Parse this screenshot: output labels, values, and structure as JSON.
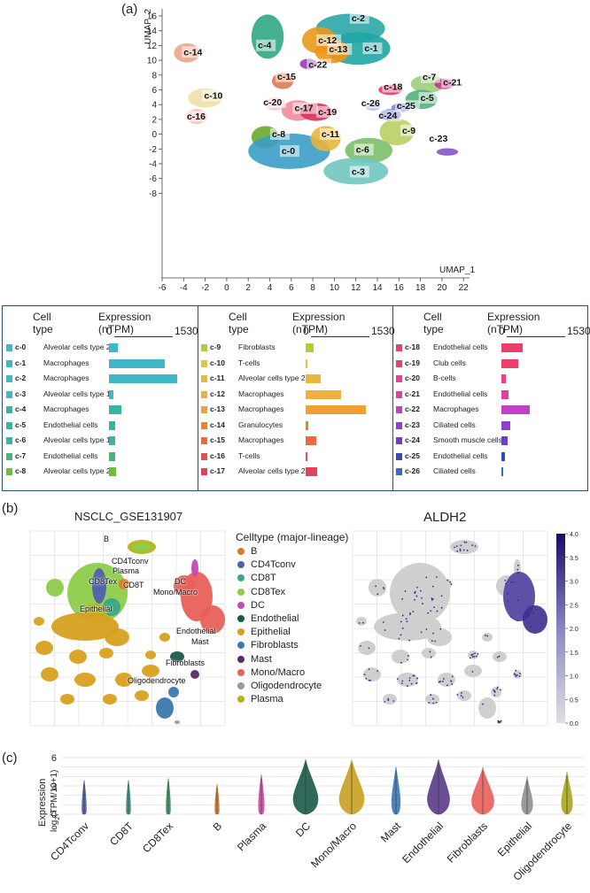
{
  "panels": {
    "a": "(a)",
    "b": "(b)",
    "c": "(c)"
  },
  "umap": {
    "ylabel": "UMAP_2",
    "xlabel": "UMAP_1",
    "xticks": [
      "-6",
      "-4",
      "-2",
      "0",
      "2",
      "4",
      "6",
      "8",
      "10",
      "12",
      "14",
      "16",
      "18",
      "20",
      "22"
    ],
    "yticks": [
      "16",
      "14",
      "12",
      "10",
      "8",
      "6",
      "4",
      "2",
      "0",
      "-2",
      "-4",
      "-6",
      "-8"
    ],
    "clusters": [
      {
        "id": "c-0",
        "color": "#3a9ec6"
      },
      {
        "id": "c-1",
        "color": "#1fa5a5"
      },
      {
        "id": "c-2",
        "color": "#2aa6a6"
      },
      {
        "id": "c-3",
        "color": "#6fc7c0"
      },
      {
        "id": "c-4",
        "color": "#2fa884"
      },
      {
        "id": "c-5",
        "color": "#52b37a"
      },
      {
        "id": "c-6",
        "color": "#7cbf6a"
      },
      {
        "id": "c-7",
        "color": "#9ccd7e"
      },
      {
        "id": "c-8",
        "color": "#6aa82c"
      },
      {
        "id": "c-9",
        "color": "#b9cf64"
      },
      {
        "id": "c-10",
        "color": "#efe0a8"
      },
      {
        "id": "c-11",
        "color": "#e9b53c"
      },
      {
        "id": "c-12",
        "color": "#e99a1c"
      },
      {
        "id": "c-13",
        "color": "#f09418"
      },
      {
        "id": "c-14",
        "color": "#eaa58a"
      },
      {
        "id": "c-15",
        "color": "#e07a54"
      },
      {
        "id": "c-16",
        "color": "#f2b7b0"
      },
      {
        "id": "c-17",
        "color": "#f08b9a"
      },
      {
        "id": "c-18",
        "color": "#e33a6b"
      },
      {
        "id": "c-19",
        "color": "#d8305a"
      },
      {
        "id": "c-20",
        "color": "#f4c8d6"
      },
      {
        "id": "c-21",
        "color": "#d2308a"
      },
      {
        "id": "c-22",
        "color": "#9a3ab0"
      },
      {
        "id": "c-23",
        "color": "#8a52c8"
      },
      {
        "id": "c-24",
        "color": "#6a72c8"
      },
      {
        "id": "c-25",
        "color": "#7a8ad0"
      },
      {
        "id": "c-26",
        "color": "#a6b8e2"
      }
    ]
  },
  "expression_table": {
    "col_header_type": "Cell type",
    "col_header_expr": "Expression (nTPM)",
    "axis_min": "0",
    "axis_max": "1530",
    "rows": [
      {
        "id": "c-0",
        "cell": "Alveolar cells type 2",
        "value": 170,
        "color": "#3fb8c8"
      },
      {
        "id": "c-1",
        "cell": "Macrophages",
        "value": 1100,
        "color": "#3fb8c8"
      },
      {
        "id": "c-2",
        "cell": "Macrophages",
        "value": 1340,
        "color": "#3fb8c8"
      },
      {
        "id": "c-3",
        "cell": "Alveolar cells type 1",
        "value": 80,
        "color": "#3fb8c8"
      },
      {
        "id": "c-4",
        "cell": "Macrophages",
        "value": 250,
        "color": "#36b5a0"
      },
      {
        "id": "c-5",
        "cell": "Endothelial cells",
        "value": 130,
        "color": "#36b5a0"
      },
      {
        "id": "c-6",
        "cell": "Alveolar cells type 1",
        "value": 120,
        "color": "#36b5a0"
      },
      {
        "id": "c-7",
        "cell": "Endothelial cells",
        "value": 115,
        "color": "#3fb878"
      },
      {
        "id": "c-8",
        "cell": "Alveolar cells type 2",
        "value": 140,
        "color": "#6cbf3c"
      },
      {
        "id": "c-9",
        "cell": "Fibroblasts",
        "value": 150,
        "color": "#b4c93c"
      },
      {
        "id": "c-10",
        "cell": "T-cells",
        "value": 25,
        "color": "#e8c23c"
      },
      {
        "id": "c-11",
        "cell": "Alveolar cells type 2",
        "value": 300,
        "color": "#e8b83c"
      },
      {
        "id": "c-12",
        "cell": "Macrophages",
        "value": 700,
        "color": "#f0b03c"
      },
      {
        "id": "c-13",
        "cell": "Macrophages",
        "value": 1180,
        "color": "#f0a030"
      },
      {
        "id": "c-14",
        "cell": "Granulocytes",
        "value": 60,
        "color": "#f08030"
      },
      {
        "id": "c-15",
        "cell": "Macrophages",
        "value": 210,
        "color": "#ea6a3c"
      },
      {
        "id": "c-16",
        "cell": "T-cells",
        "value": 25,
        "color": "#e85050"
      },
      {
        "id": "c-17",
        "cell": "Alveolar cells type 2",
        "value": 230,
        "color": "#e8405a"
      },
      {
        "id": "c-18",
        "cell": "Endothelial cells",
        "value": 410,
        "color": "#e8406a"
      },
      {
        "id": "c-19",
        "cell": "Club cells",
        "value": 330,
        "color": "#e8406a"
      },
      {
        "id": "c-20",
        "cell": "B-cells",
        "value": 80,
        "color": "#e8408a"
      },
      {
        "id": "c-21",
        "cell": "Endothelial cells",
        "value": 140,
        "color": "#e040a0"
      },
      {
        "id": "c-22",
        "cell": "Macrophages",
        "value": 560,
        "color": "#c040c8"
      },
      {
        "id": "c-23",
        "cell": "Ciliated cells",
        "value": 170,
        "color": "#9040c8"
      },
      {
        "id": "c-24",
        "cell": "Smooth muscle cells",
        "value": 120,
        "color": "#6a40c0"
      },
      {
        "id": "c-25",
        "cell": "Endothelial cells",
        "value": 70,
        "color": "#3a48c0"
      },
      {
        "id": "c-26",
        "cell": "Ciliated cells",
        "value": 25,
        "color": "#3a68c8"
      }
    ]
  },
  "panel_b": {
    "left_title": "NSCLC_GSE131907",
    "right_title": "ALDH2",
    "legend_title": "Celltype (major-lineage)",
    "legend": [
      {
        "name": "B",
        "color": "#e07b1a"
      },
      {
        "name": "CD4Tconv",
        "color": "#5060b0"
      },
      {
        "name": "CD8T",
        "color": "#3aa68a"
      },
      {
        "name": "CD8Tex",
        "color": "#8ccc4a"
      },
      {
        "name": "DC",
        "color": "#c84ab0"
      },
      {
        "name": "Endothelial",
        "color": "#1a5a4a"
      },
      {
        "name": "Epithelial",
        "color": "#d8a020"
      },
      {
        "name": "Fibroblasts",
        "color": "#3a78b0"
      },
      {
        "name": "Mast",
        "color": "#5a2a6a"
      },
      {
        "name": "Mono/Macro",
        "color": "#e8605a"
      },
      {
        "name": "Oligodendrocyte",
        "color": "#999999"
      },
      {
        "name": "Plasma",
        "color": "#b4b41a"
      }
    ],
    "map_labels": [
      "B",
      "CD4Tconv",
      "Plasma",
      "CD8Tex",
      "CD8T",
      "Mono/Macro",
      "DC",
      "Epithelial",
      "Endothelial",
      "Mast",
      "Fibroblasts",
      "Oligodendrocyte"
    ],
    "colorbar_ticks": [
      "4.0",
      "3.5",
      "3.0",
      "2.5",
      "2.0",
      "1.5",
      "1.0",
      "0.5",
      "0.0"
    ],
    "colorbar_range": [
      0,
      4
    ]
  },
  "chart_data": {
    "type": "violin",
    "title": "",
    "ylabel": "Expression log2(TPM/10+1)",
    "ylabel_main": "Expression",
    "ylabel_sub": "log",
    "ylabel_sub2": "2",
    "ylabel_sub3": "(TPM/10+1)",
    "yticks": [
      "6",
      "3",
      "0"
    ],
    "ylim": [
      0,
      6
    ],
    "categories": [
      "CD4Tconv",
      "CD8T",
      "CD8Tex",
      "B",
      "Plasma",
      "DC",
      "Mono/Macro",
      "Mast",
      "Endothelial",
      "Fibroblasts",
      "Epithelial",
      "Oligodendrocyte"
    ],
    "max_values": [
      3.6,
      3.6,
      3.8,
      3.2,
      4.2,
      5.8,
      5.8,
      5.0,
      5.8,
      5.0,
      4.0,
      4.5
    ],
    "widths": [
      0.02,
      0.02,
      0.02,
      0.02,
      0.08,
      0.85,
      0.85,
      0.2,
      0.75,
      0.75,
      0.3,
      0.3
    ],
    "colors": [
      "#4a5a9a",
      "#3a8a7a",
      "#3a8a5a",
      "#c87a2a",
      "#c84aa0",
      "#1a5a4a",
      "#c8a020",
      "#3a78b0",
      "#5a3a8a",
      "#e8605a",
      "#909090",
      "#a8a820"
    ]
  }
}
